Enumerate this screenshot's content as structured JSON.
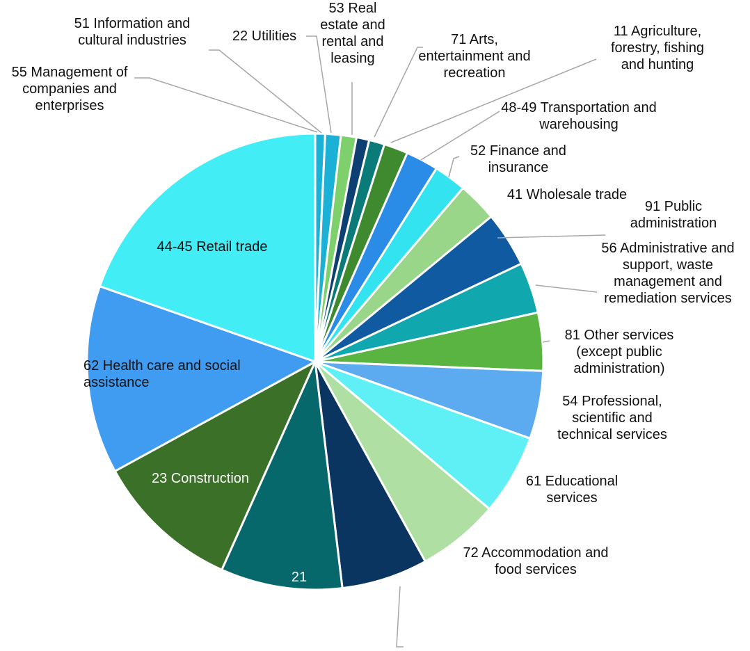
{
  "chart_data": {
    "type": "pie",
    "categories": [
      "55 Management of companies and enterprises",
      "51 Information and cultural industries",
      "22 Utilities",
      "53 Real estate and rental and leasing",
      "71 Arts, entertainment and recreation",
      "11 Agriculture, forestry, fishing and hunting",
      "48-49 Transportation and warehousing",
      "52 Finance and insurance",
      "41 Wholesale trade",
      "91 Public administration",
      "56 Administrative and support, waste management and remediation services",
      "81 Other services (except public administration)",
      "54 Professional, scientific and technical services",
      "61 Educational services",
      "72 Accommodation and food services",
      null,
      "21",
      "23 Construction",
      "62 Health care and social assistance",
      "44-45 Retail trade"
    ],
    "values": [
      0.7,
      1.1,
      1.1,
      0.9,
      1.1,
      1.7,
      2.3,
      2.3,
      2.8,
      3.9,
      3.6,
      4.1,
      4.8,
      5.7,
      5.8,
      6.1,
      8.6,
      10.3,
      13.3,
      19.6
    ],
    "colors": [
      "#1bb0d6",
      "#1bb0d6",
      "#7dd06b",
      "#0e3f73",
      "#0b7b7a",
      "#3f8a2e",
      "#2b8ce8",
      "#33e4f0",
      "#9ad689",
      "#0f5aa0",
      "#11a7ae",
      "#5ab441",
      "#5caaf0",
      "#5ff0f6",
      "#b0dfa3",
      "#0a3560",
      "#06686a",
      "#3a7027",
      "#409cf0",
      "#42edf5"
    ]
  }
}
